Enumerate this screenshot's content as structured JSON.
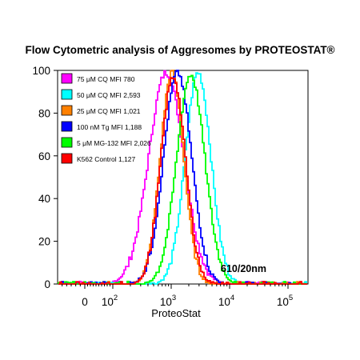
{
  "chart_data": {
    "type": "line",
    "title": "Flow Cytometric analysis of Aggresomes by PROTEOSTAT®",
    "xlabel": "ProteoStat",
    "ylabel": "",
    "x_scale": "biexponential",
    "xlim": [
      -60,
      200000
    ],
    "ylim": [
      0,
      100
    ],
    "x_ticks": [
      {
        "value": 0,
        "base": "0",
        "exp": ""
      },
      {
        "value": 100,
        "base": "10",
        "exp": "2"
      },
      {
        "value": 1000,
        "base": "10",
        "exp": "3"
      },
      {
        "value": 10000,
        "base": "10",
        "exp": "4"
      },
      {
        "value": 100000,
        "base": "10",
        "exp": "5"
      }
    ],
    "y_ticks": [
      0,
      20,
      40,
      60,
      80,
      100
    ],
    "annotation": "610/20nm",
    "legend_position": "top-left",
    "grid": false,
    "series": [
      {
        "name": "75 μM CQ MFI 780",
        "color": "#ff00ff",
        "peak_x": 800,
        "peak_y": 99,
        "width": 0.3
      },
      {
        "name": "50 μM CQ MFI 2,593",
        "color": "#00ffff",
        "peak_x": 2800,
        "peak_y": 99,
        "width": 0.22
      },
      {
        "name": "25 μM CQ MFI 1,021",
        "color": "#ff8000",
        "peak_x": 1000,
        "peak_y": 99,
        "width": 0.2
      },
      {
        "name": "100 nM Tg MFI 1,188",
        "color": "#0000ff",
        "peak_x": 1250,
        "peak_y": 99,
        "width": 0.24
      },
      {
        "name": "5 μM MG-132 MFI 2,026",
        "color": "#00ff00",
        "peak_x": 2100,
        "peak_y": 98,
        "width": 0.24
      },
      {
        "name": "K562 Control 1,127",
        "color": "#ff0000",
        "peak_x": 1050,
        "peak_y": 97,
        "width": 0.21
      }
    ]
  }
}
